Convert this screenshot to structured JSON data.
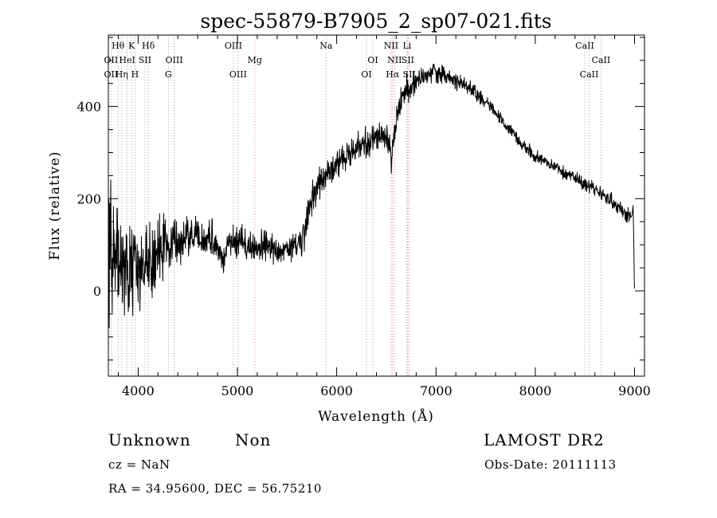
{
  "chart_data": {
    "type": "line",
    "title": "spec-55879-B7905_2_sp07-021.fits",
    "xlabel": "Wavelength (Å)",
    "ylabel": "Flux (relative)",
    "xlim": [
      3700,
      9100
    ],
    "ylim": [
      -185,
      555
    ],
    "x_ticks": [
      4000,
      5000,
      6000,
      7000,
      8000,
      9000
    ],
    "y_ticks": [
      0,
      200,
      400
    ],
    "grid": false,
    "series": [
      {
        "anchors": [
          [
            3700,
            20
          ],
          [
            3720,
            130
          ],
          [
            3750,
            90
          ],
          [
            3800,
            70
          ],
          [
            3850,
            40
          ],
          [
            3900,
            60
          ],
          [
            3950,
            55
          ],
          [
            4000,
            40
          ],
          [
            4050,
            30
          ],
          [
            4100,
            60
          ],
          [
            4150,
            80
          ],
          [
            4200,
            95
          ],
          [
            4300,
            100
          ],
          [
            4400,
            105
          ],
          [
            4500,
            110
          ],
          [
            4600,
            115
          ],
          [
            4700,
            110
          ],
          [
            4800,
            105
          ],
          [
            4860,
            60
          ],
          [
            4900,
            108
          ],
          [
            5000,
            110
          ],
          [
            5100,
            100
          ],
          [
            5200,
            92
          ],
          [
            5300,
            95
          ],
          [
            5400,
            90
          ],
          [
            5500,
            92
          ],
          [
            5600,
            95
          ],
          [
            5650,
            105
          ],
          [
            5700,
            150
          ],
          [
            5750,
            200
          ],
          [
            5800,
            230
          ],
          [
            5900,
            250
          ],
          [
            6000,
            270
          ],
          [
            6100,
            290
          ],
          [
            6200,
            310
          ],
          [
            6300,
            320
          ],
          [
            6400,
            335
          ],
          [
            6500,
            340
          ],
          [
            6550,
            290
          ],
          [
            6560,
            310
          ],
          [
            6600,
            370
          ],
          [
            6650,
            420
          ],
          [
            6700,
            440
          ],
          [
            6800,
            450
          ],
          [
            6900,
            470
          ],
          [
            6950,
            480
          ],
          [
            7000,
            475
          ],
          [
            7100,
            465
          ],
          [
            7200,
            455
          ],
          [
            7300,
            445
          ],
          [
            7400,
            430
          ],
          [
            7500,
            410
          ],
          [
            7600,
            385
          ],
          [
            7700,
            360
          ],
          [
            7800,
            335
          ],
          [
            7900,
            310
          ],
          [
            8000,
            290
          ],
          [
            8100,
            280
          ],
          [
            8200,
            268
          ],
          [
            8300,
            255
          ],
          [
            8400,
            245
          ],
          [
            8500,
            230
          ],
          [
            8600,
            220
          ],
          [
            8700,
            205
          ],
          [
            8800,
            190
          ],
          [
            8900,
            170
          ],
          [
            8970,
            160
          ],
          [
            9000,
            0
          ]
        ],
        "noise_levels": [
          [
            3700,
            95
          ],
          [
            4100,
            70
          ],
          [
            4300,
            38
          ],
          [
            4800,
            25
          ],
          [
            5700,
            24
          ],
          [
            6500,
            22
          ],
          [
            6700,
            22
          ],
          [
            7000,
            16
          ],
          [
            7400,
            12
          ],
          [
            8000,
            10
          ],
          [
            8500,
            10
          ],
          [
            9000,
            12
          ]
        ]
      }
    ],
    "line_labels": [
      {
        "label": "Hθ",
        "wavelength": 3798,
        "row": 0
      },
      {
        "label": "K",
        "wavelength": 3934,
        "row": 0
      },
      {
        "label": "Hδ",
        "wavelength": 4102,
        "row": 0
      },
      {
        "label": "OII",
        "wavelength": 3727,
        "row": 1
      },
      {
        "label": "HeI",
        "wavelength": 3889,
        "row": 1
      },
      {
        "label": "SII",
        "wavelength": 4069,
        "row": 1
      },
      {
        "label": "OIII",
        "wavelength": 4363,
        "row": 1
      },
      {
        "label": "OII",
        "wavelength": 3727,
        "row": 2
      },
      {
        "label": "Hη",
        "wavelength": 3835,
        "row": 2
      },
      {
        "label": "H",
        "wavelength": 3968,
        "row": 2
      },
      {
        "label": "G",
        "wavelength": 4305,
        "row": 2
      },
      {
        "label": "OIII",
        "wavelength": 4959,
        "row": 0
      },
      {
        "label": "Mg",
        "wavelength": 5175,
        "row": 1
      },
      {
        "label": "OIII",
        "wavelength": 5007,
        "row": 2
      },
      {
        "label": "Na",
        "wavelength": 5893,
        "row": 0
      },
      {
        "label": "OI",
        "wavelength": 6364,
        "row": 1
      },
      {
        "label": "OI",
        "wavelength": 6300,
        "row": 2
      },
      {
        "label": "NII",
        "wavelength": 6548,
        "row": 0
      },
      {
        "label": "Li",
        "wavelength": 6708,
        "row": 0
      },
      {
        "label": "NII",
        "wavelength": 6583,
        "row": 1
      },
      {
        "label": "SII",
        "wavelength": 6716,
        "row": 1
      },
      {
        "label": "Hα",
        "wavelength": 6563,
        "row": 2
      },
      {
        "label": "SII",
        "wavelength": 6731,
        "row": 2
      },
      {
        "label": "CaII",
        "wavelength": 8498,
        "row": 0
      },
      {
        "label": "CaII",
        "wavelength": 8662,
        "row": 1
      },
      {
        "label": "CaII",
        "wavelength": 8542,
        "row": 2
      }
    ],
    "line_markers": [
      {
        "wavelength": 3727,
        "color": "#888888"
      },
      {
        "wavelength": 3798,
        "color": "#888888"
      },
      {
        "wavelength": 3835,
        "color": "#888888"
      },
      {
        "wavelength": 3889,
        "color": "#888888"
      },
      {
        "wavelength": 3934,
        "color": "#888888"
      },
      {
        "wavelength": 3968,
        "color": "#888888"
      },
      {
        "wavelength": 4069,
        "color": "#888888"
      },
      {
        "wavelength": 4102,
        "color": "#cc6666"
      },
      {
        "wavelength": 4305,
        "color": "#888888"
      },
      {
        "wavelength": 4363,
        "color": "#888888"
      },
      {
        "wavelength": 4959,
        "color": "#888888"
      },
      {
        "wavelength": 5007,
        "color": "#888888"
      },
      {
        "wavelength": 5175,
        "color": "#cc6666"
      },
      {
        "wavelength": 5893,
        "color": "#888888"
      },
      {
        "wavelength": 6300,
        "color": "#888888"
      },
      {
        "wavelength": 6364,
        "color": "#888888"
      },
      {
        "wavelength": 6548,
        "color": "#cc6666"
      },
      {
        "wavelength": 6563,
        "color": "#cc6666"
      },
      {
        "wavelength": 6583,
        "color": "#cc6666"
      },
      {
        "wavelength": 6708,
        "color": "#888888"
      },
      {
        "wavelength": 6716,
        "color": "#cc6666"
      },
      {
        "wavelength": 6731,
        "color": "#cc6666"
      },
      {
        "wavelength": 8498,
        "color": "#888888"
      },
      {
        "wavelength": 8542,
        "color": "#888888"
      },
      {
        "wavelength": 8662,
        "color": "#888888"
      }
    ]
  },
  "info": {
    "class_label": "Unknown",
    "subclass_label": "Non",
    "survey": "LAMOST DR2",
    "cz": "cz = NaN",
    "obs_date": "Obs-Date: 20111113",
    "coords": "RA =  34.95600, DEC =  56.75210"
  }
}
